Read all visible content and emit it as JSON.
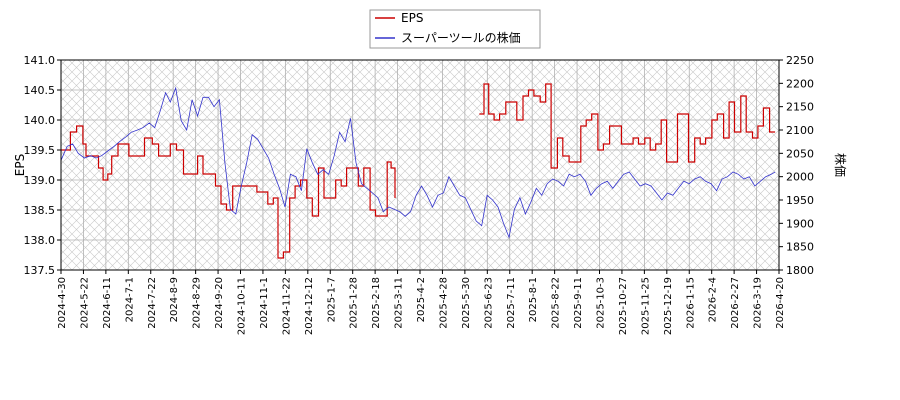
{
  "chart_data": {
    "type": "line",
    "x_ticks": [
      "2024-4-30",
      "2024-5-22",
      "2024-6-11",
      "2024-7-1",
      "2024-7-22",
      "2024-8-9",
      "2024-8-29",
      "2024-9-20",
      "2024-10-11",
      "2024-11-1",
      "2024-11-22",
      "2024-12-12",
      "2025-1-7",
      "2025-1-28",
      "2025-2-18",
      "2025-3-11",
      "2025-4-2",
      "2025-4-28",
      "2025-5-30",
      "2025-6-23",
      "2025-7-11",
      "2025-8-1",
      "2025-8-22",
      "2025-9-11",
      "2025-10-3",
      "2025-10-27",
      "2025-11-25",
      "2025-12-19",
      "2026-1-15",
      "2026-2-4",
      "2026-2-27",
      "2026-3-19",
      "2026-4-20"
    ],
    "y_left": {
      "label": "EPS",
      "min": 137.5,
      "max": 141.0,
      "ticks": [
        "137.5",
        "138.0",
        "138.5",
        "139.0",
        "139.5",
        "140.0",
        "140.5",
        "141.0"
      ]
    },
    "y_right": {
      "label": "株価",
      "min": 1800,
      "max": 2250,
      "ticks": [
        "1800",
        "1850",
        "1900",
        "1950",
        "2000",
        "2050",
        "2100",
        "2150",
        "2200",
        "2250"
      ]
    },
    "legend_position": "top-center",
    "grid": true,
    "series": [
      {
        "name": "EPS",
        "color": "#cc0000",
        "axis": "left",
        "segments": [
          [
            [
              0,
              139.5
            ],
            [
              1.2,
              139.8
            ],
            [
              2.0,
              139.9
            ],
            [
              2.8,
              139.6
            ],
            [
              3.2,
              139.4
            ],
            [
              4.0,
              139.4
            ],
            [
              4.8,
              139.2
            ],
            [
              5.4,
              139.0
            ],
            [
              6.0,
              139.1
            ],
            [
              6.5,
              139.4
            ],
            [
              7.3,
              139.6
            ],
            [
              8.0,
              139.6
            ],
            [
              8.7,
              139.4
            ],
            [
              9.7,
              139.4
            ],
            [
              10.7,
              139.7
            ],
            [
              11.7,
              139.6
            ],
            [
              12.5,
              139.4
            ],
            [
              13.3,
              139.4
            ],
            [
              14.0,
              139.6
            ],
            [
              14.8,
              139.5
            ],
            [
              15.7,
              139.1
            ],
            [
              16.6,
              139.1
            ],
            [
              17.5,
              139.4
            ],
            [
              18.2,
              139.1
            ],
            [
              18.9,
              139.1
            ],
            [
              19.8,
              138.9
            ],
            [
              20.5,
              138.6
            ],
            [
              21.2,
              138.5
            ],
            [
              22.0,
              138.9
            ],
            [
              22.7,
              138.9
            ],
            [
              23.5,
              138.9
            ],
            [
              24.3,
              138.9
            ],
            [
              25.1,
              138.8
            ],
            [
              25.8,
              138.8
            ],
            [
              26.5,
              138.6
            ],
            [
              27.2,
              138.7
            ],
            [
              27.8,
              137.7
            ],
            [
              28.5,
              137.8
            ],
            [
              29.3,
              138.7
            ],
            [
              30.0,
              138.9
            ],
            [
              30.7,
              139.0
            ],
            [
              31.5,
              138.7
            ],
            [
              32.2,
              138.4
            ],
            [
              33.0,
              139.2
            ],
            [
              33.7,
              138.7
            ],
            [
              34.4,
              138.7
            ],
            [
              35.2,
              139.0
            ],
            [
              35.9,
              138.9
            ],
            [
              36.6,
              139.2
            ],
            [
              37.3,
              139.2
            ],
            [
              38.1,
              138.9
            ],
            [
              38.8,
              139.2
            ],
            [
              39.6,
              138.5
            ],
            [
              40.3,
              138.4
            ],
            [
              41.0,
              138.4
            ],
            [
              41.8,
              139.3
            ],
            [
              42.3,
              139.2
            ],
            [
              42.8,
              138.7
            ]
          ],
          [
            [
              53.6,
              140.1
            ],
            [
              54.2,
              140.6
            ],
            [
              54.8,
              140.1
            ],
            [
              55.5,
              140.0
            ],
            [
              56.2,
              140.1
            ],
            [
              57.0,
              140.3
            ],
            [
              57.7,
              140.3
            ],
            [
              58.4,
              140.0
            ],
            [
              59.2,
              140.4
            ],
            [
              59.9,
              140.5
            ],
            [
              60.6,
              140.4
            ],
            [
              61.4,
              140.3
            ],
            [
              62.1,
              140.6
            ],
            [
              62.8,
              139.2
            ],
            [
              63.6,
              139.7
            ],
            [
              64.3,
              139.4
            ],
            [
              65.1,
              139.3
            ],
            [
              65.8,
              139.3
            ],
            [
              66.6,
              139.9
            ],
            [
              67.3,
              140.0
            ],
            [
              68.0,
              140.1
            ],
            [
              68.8,
              139.5
            ],
            [
              69.5,
              139.6
            ],
            [
              70.3,
              139.9
            ],
            [
              71.0,
              139.9
            ],
            [
              71.8,
              139.6
            ],
            [
              72.5,
              139.6
            ],
            [
              73.3,
              139.7
            ],
            [
              74.0,
              139.6
            ],
            [
              74.8,
              139.7
            ],
            [
              75.5,
              139.5
            ],
            [
              76.2,
              139.6
            ],
            [
              76.9,
              140.0
            ],
            [
              77.6,
              139.3
            ],
            [
              78.3,
              139.3
            ],
            [
              79.0,
              140.1
            ],
            [
              79.7,
              140.1
            ],
            [
              80.4,
              139.3
            ],
            [
              81.2,
              139.7
            ],
            [
              81.9,
              139.6
            ],
            [
              82.6,
              139.7
            ],
            [
              83.4,
              140.0
            ],
            [
              84.1,
              140.1
            ],
            [
              84.9,
              139.7
            ],
            [
              85.6,
              140.3
            ],
            [
              86.3,
              139.8
            ],
            [
              87.1,
              140.4
            ],
            [
              87.8,
              139.8
            ],
            [
              88.6,
              139.7
            ],
            [
              89.3,
              139.9
            ],
            [
              90.0,
              140.2
            ],
            [
              90.8,
              139.8
            ],
            [
              91.5,
              139.8
            ]
          ]
        ]
      },
      {
        "name": "スーパーツールの株価",
        "color": "#3333cc",
        "axis": "right",
        "segments": [
          [
            [
              0,
              2035
            ],
            [
              0.8,
              2065
            ],
            [
              1.5,
              2070
            ],
            [
              2.2,
              2050
            ],
            [
              3.0,
              2040
            ],
            [
              3.8,
              2045
            ],
            [
              4.5,
              2040
            ],
            [
              5.2,
              2045
            ],
            [
              6.0,
              2055
            ],
            [
              6.8,
              2065
            ],
            [
              7.5,
              2075
            ],
            [
              8.3,
              2085
            ],
            [
              9.0,
              2095
            ],
            [
              9.8,
              2100
            ],
            [
              10.5,
              2105
            ],
            [
              11.3,
              2115
            ],
            [
              12.0,
              2105
            ],
            [
              12.7,
              2140
            ],
            [
              13.4,
              2180
            ],
            [
              14.0,
              2160
            ],
            [
              14.7,
              2190
            ],
            [
              15.4,
              2120
            ],
            [
              16.1,
              2100
            ],
            [
              16.8,
              2165
            ],
            [
              17.5,
              2130
            ],
            [
              18.2,
              2170
            ],
            [
              18.9,
              2170
            ],
            [
              19.6,
              2150
            ],
            [
              20.3,
              2165
            ],
            [
              21.0,
              2030
            ],
            [
              21.7,
              1930
            ],
            [
              22.4,
              1920
            ],
            [
              23.1,
              1980
            ],
            [
              23.8,
              2030
            ],
            [
              24.5,
              2090
            ],
            [
              25.2,
              2080
            ],
            [
              25.9,
              2060
            ],
            [
              26.6,
              2040
            ],
            [
              27.3,
              2005
            ],
            [
              28.0,
              1975
            ],
            [
              28.7,
              1935
            ],
            [
              29.4,
              2005
            ],
            [
              30.1,
              2000
            ],
            [
              30.8,
              1970
            ],
            [
              31.5,
              2060
            ],
            [
              32.2,
              2030
            ],
            [
              32.9,
              2005
            ],
            [
              33.6,
              2015
            ],
            [
              34.3,
              2005
            ],
            [
              35.0,
              2045
            ],
            [
              35.7,
              2095
            ],
            [
              36.4,
              2075
            ],
            [
              37.1,
              2125
            ],
            [
              37.8,
              2030
            ],
            [
              38.5,
              1985
            ],
            [
              39.2,
              1975
            ],
            [
              39.9,
              1965
            ],
            [
              40.6,
              1955
            ],
            [
              41.3,
              1925
            ],
            [
              42.0,
              1935
            ],
            [
              42.7,
              1930
            ],
            [
              43.4,
              1925
            ],
            [
              44.1,
              1915
            ],
            [
              44.8,
              1925
            ],
            [
              45.5,
              1960
            ],
            [
              46.2,
              1980
            ],
            [
              46.9,
              1960
            ],
            [
              47.6,
              1935
            ],
            [
              48.3,
              1960
            ],
            [
              49.0,
              1965
            ],
            [
              49.7,
              2000
            ],
            [
              50.4,
              1980
            ],
            [
              51.1,
              1960
            ],
            [
              51.8,
              1955
            ],
            [
              52.5,
              1930
            ],
            [
              53.2,
              1905
            ],
            [
              53.9,
              1895
            ],
            [
              54.6,
              1960
            ],
            [
              55.3,
              1950
            ],
            [
              56.0,
              1935
            ],
            [
              56.7,
              1900
            ],
            [
              57.4,
              1870
            ],
            [
              58.1,
              1930
            ],
            [
              58.8,
              1955
            ],
            [
              59.5,
              1920
            ],
            [
              60.2,
              1945
            ],
            [
              60.9,
              1975
            ],
            [
              61.6,
              1960
            ],
            [
              62.3,
              1985
            ],
            [
              63.0,
              1995
            ],
            [
              63.7,
              1990
            ],
            [
              64.4,
              1980
            ],
            [
              65.1,
              2005
            ],
            [
              65.8,
              2000
            ],
            [
              66.5,
              2005
            ],
            [
              67.2,
              1990
            ],
            [
              67.9,
              1960
            ],
            [
              68.6,
              1975
            ],
            [
              69.3,
              1985
            ],
            [
              70.0,
              1990
            ],
            [
              70.7,
              1975
            ],
            [
              71.4,
              1990
            ],
            [
              72.1,
              2005
            ],
            [
              72.8,
              2010
            ],
            [
              73.5,
              1995
            ],
            [
              74.2,
              1980
            ],
            [
              74.9,
              1985
            ],
            [
              75.6,
              1980
            ],
            [
              76.3,
              1965
            ],
            [
              77.0,
              1950
            ],
            [
              77.7,
              1965
            ],
            [
              78.4,
              1960
            ],
            [
              79.1,
              1975
            ],
            [
              79.8,
              1990
            ],
            [
              80.5,
              1985
            ],
            [
              81.2,
              1995
            ],
            [
              81.9,
              2000
            ],
            [
              82.6,
              1990
            ],
            [
              83.3,
              1985
            ],
            [
              84.0,
              1970
            ],
            [
              84.7,
              1995
            ],
            [
              85.4,
              2000
            ],
            [
              86.1,
              2010
            ],
            [
              86.8,
              2005
            ],
            [
              87.5,
              1995
            ],
            [
              88.2,
              2000
            ],
            [
              88.9,
              1980
            ],
            [
              89.6,
              1990
            ],
            [
              90.3,
              2000
            ],
            [
              91.0,
              2005
            ],
            [
              91.5,
              2010
            ]
          ]
        ],
        "note_segment_break": false
      }
    ]
  }
}
